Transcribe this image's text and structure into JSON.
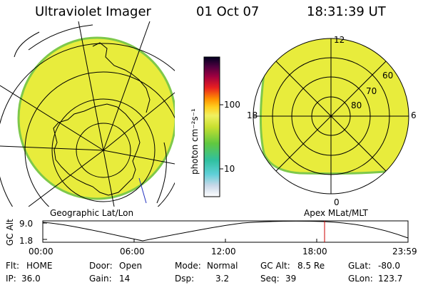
{
  "header": {
    "title": "Ultraviolet Imager",
    "date": "01 Oct 07",
    "time": "18:31:39 UT"
  },
  "colorbar": {
    "unit_label": "photon cm⁻²s⁻¹",
    "ticks": [
      "100",
      "10"
    ]
  },
  "left_map": {
    "caption": "Geographic Lat/Lon"
  },
  "right_map": {
    "caption": "Apex  MLat/MLT",
    "mlt_labels": {
      "top": "12",
      "left": "18",
      "right": "6",
      "bottom": "0"
    },
    "lat_labels": [
      "60",
      "70",
      "80"
    ]
  },
  "altitude_plot": {
    "ylabel": "GC Alt",
    "yticks": [
      "9.0",
      "1.8"
    ],
    "xticks": [
      "00:00",
      "06:00",
      "12:00",
      "18:00",
      "23:59"
    ],
    "marker_time": "18:31"
  },
  "info": [
    [
      {
        "k": "Flt:",
        "v": "HOME"
      },
      {
        "k": "Door:",
        "v": "Open"
      },
      {
        "k": "Mode:",
        "v": "Normal"
      },
      {
        "k": "GC Alt:",
        "v": "8.5 Re"
      },
      {
        "k": "GLat:",
        "v": "-80.0"
      }
    ],
    [
      {
        "k": "IP:",
        "v": "36.0"
      },
      {
        "k": "Gain:",
        "v": "14"
      },
      {
        "k": "Dsp:",
        "v": "3.2"
      },
      {
        "k": "Seq:",
        "v": "39"
      },
      {
        "k": "GLon:",
        "v": "123.7"
      }
    ]
  ],
  "colors": {
    "image_fill": "#e8ec3c",
    "image_edge": "#7ec84a",
    "marker": "#cc0000"
  }
}
